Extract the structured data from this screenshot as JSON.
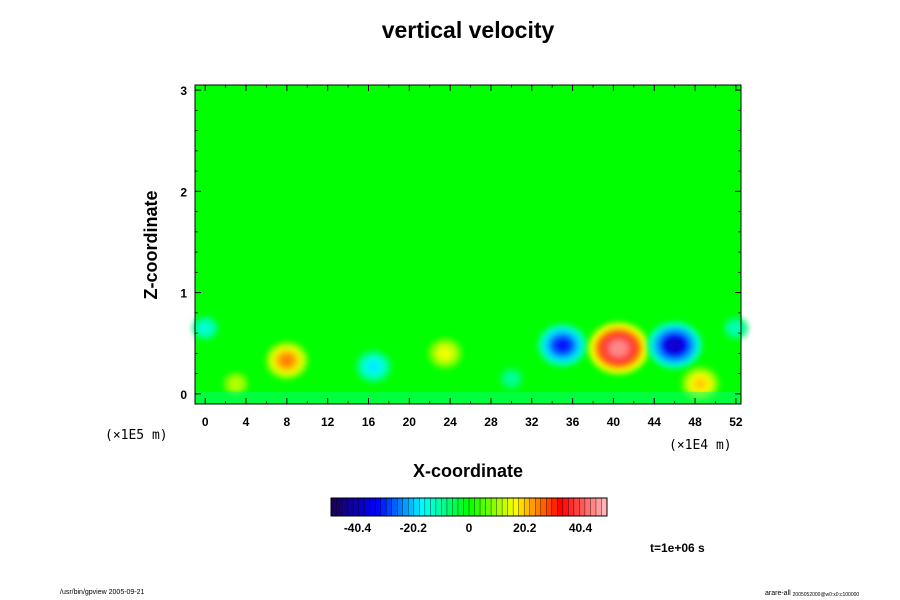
{
  "chart_data": {
    "type": "heatmap",
    "title": "vertical velocity",
    "xlabel": "X-coordinate",
    "ylabel": "Z-coordinate",
    "x_unit_label": "(×1E4 m)",
    "y_unit_label": "(×1E5 m)",
    "x_ticks": [
      "0",
      "4",
      "8",
      "12",
      "16",
      "20",
      "24",
      "28",
      "32",
      "36",
      "40",
      "44",
      "48",
      "52"
    ],
    "y_ticks": [
      "0",
      "1",
      "2",
      "3"
    ],
    "xlim": [
      -1.0,
      52.5
    ],
    "ylim": [
      -0.1,
      3.05
    ],
    "grid": false,
    "colorbar": {
      "range": [
        -50,
        50
      ],
      "tick_labels": [
        "-40.4",
        "-20.2",
        "0",
        "20.2",
        "40.4"
      ],
      "tick_values": [
        -40.4,
        -20.2,
        0,
        20.2,
        40.4
      ],
      "colormap": [
        "#1a0050",
        "#0000ff",
        "#00ffff",
        "#00ff00",
        "#ffff00",
        "#ff0000",
        "#ffc0c0"
      ]
    },
    "features": [
      {
        "x": 8.0,
        "z": 0.33,
        "value": 25
      },
      {
        "x": 16.5,
        "z": 0.27,
        "value": -18
      },
      {
        "x": 23.5,
        "z": 0.4,
        "value": 16
      },
      {
        "x": 35.0,
        "z": 0.48,
        "value": -32
      },
      {
        "x": 40.5,
        "z": 0.45,
        "value": 45
      },
      {
        "x": 46.0,
        "z": 0.48,
        "value": -38
      },
      {
        "x": 0.0,
        "z": 0.65,
        "value": -14
      },
      {
        "x": 52.0,
        "z": 0.65,
        "value": -12
      },
      {
        "x": 48.5,
        "z": 0.1,
        "value": 20
      },
      {
        "x": 3.0,
        "z": 0.1,
        "value": 12
      },
      {
        "x": 30.0,
        "z": 0.15,
        "value": -10
      }
    ]
  },
  "time_label": "t=1e+06 s",
  "footer_left": "/usr/bin/gpview 2005-09-21",
  "footer_right_main": "arare-all",
  "footer_right_sub": "2005052000@w0:x0:c100000"
}
